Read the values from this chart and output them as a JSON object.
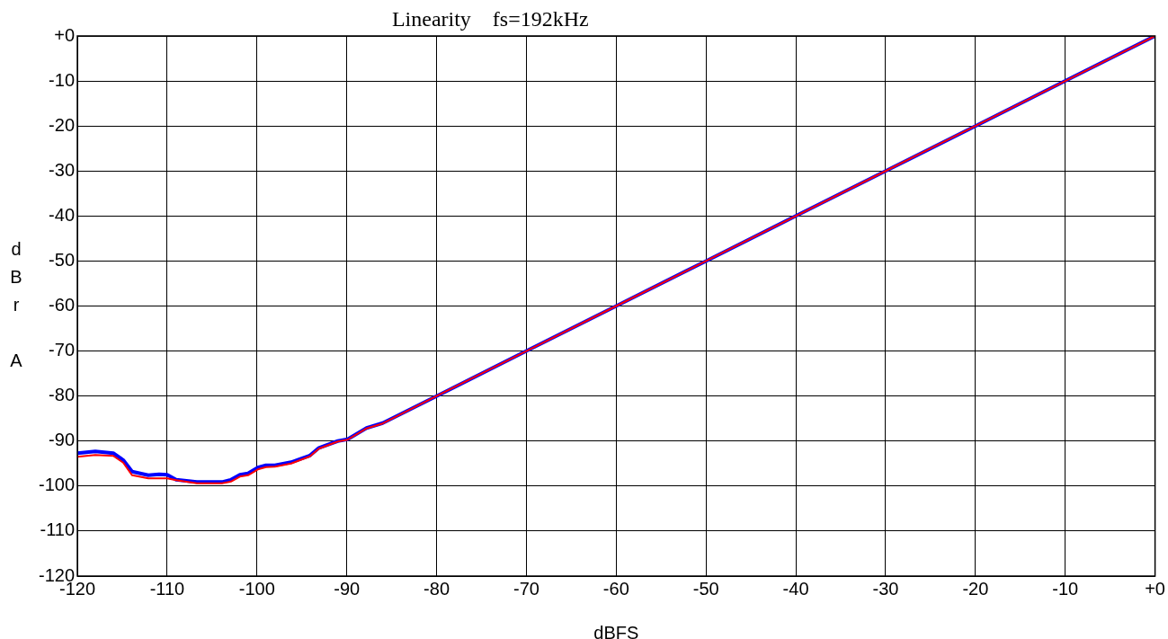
{
  "chart_data": {
    "type": "line",
    "title": "Linearity    fs=192kHz",
    "xlabel": "dBFS",
    "ylabel": "dBr A",
    "x": [
      -120,
      -118,
      -116,
      -114.9,
      -113.9,
      -112.1,
      -110.9,
      -110,
      -109,
      -106.7,
      -103.9,
      -102.9,
      -101.9,
      -101,
      -99.9,
      -99,
      -98,
      -96.2,
      -94.1,
      -93.1,
      -91,
      -89.9,
      -87.8,
      -86,
      -80,
      -70,
      -60,
      -50,
      -40,
      -30,
      -20,
      -10,
      0
    ],
    "series": [
      {
        "color": "#0000ff",
        "values": [
          -92.7,
          -92.3,
          -92.7,
          -94.2,
          -96.8,
          -97.6,
          -97.4,
          -97.5,
          -98.6,
          -99.1,
          -99.1,
          -98.6,
          -97.5,
          -97.2,
          -95.9,
          -95.4,
          -95.4,
          -94.7,
          -93.2,
          -91.5,
          -90,
          -89.6,
          -87.1,
          -86,
          -80,
          -70,
          -60,
          -50,
          -40,
          -30,
          -20,
          -10,
          0
        ]
      },
      {
        "color": "#ff0000",
        "values": [
          -93.5,
          -93.1,
          -93.3,
          -94.8,
          -97.6,
          -98.3,
          -98.3,
          -98.3,
          -98.7,
          -99.4,
          -99.4,
          -99,
          -97.9,
          -97.6,
          -96.3,
          -95.8,
          -95.7,
          -95,
          -93.4,
          -91.7,
          -90.1,
          -89.7,
          -87.2,
          -86.1,
          -80,
          -70,
          -60,
          -50,
          -40,
          -30,
          -20,
          -10,
          0
        ]
      }
    ],
    "xlim": [
      -120,
      0
    ],
    "ylim": [
      -120,
      0
    ],
    "xticks": [
      -120,
      -110,
      -100,
      -90,
      -80,
      -70,
      -60,
      -50,
      -40,
      -30,
      -20,
      -10,
      {
        "value": 0,
        "label": "+0"
      }
    ],
    "yticks": [
      {
        "value": 0,
        "label": "+0"
      },
      -10,
      -20,
      -30,
      -40,
      -50,
      -60,
      -70,
      -80,
      -90,
      -100,
      -110,
      -120
    ],
    "grid": true,
    "legend": false,
    "marker": "none",
    "line_style": "solid"
  }
}
